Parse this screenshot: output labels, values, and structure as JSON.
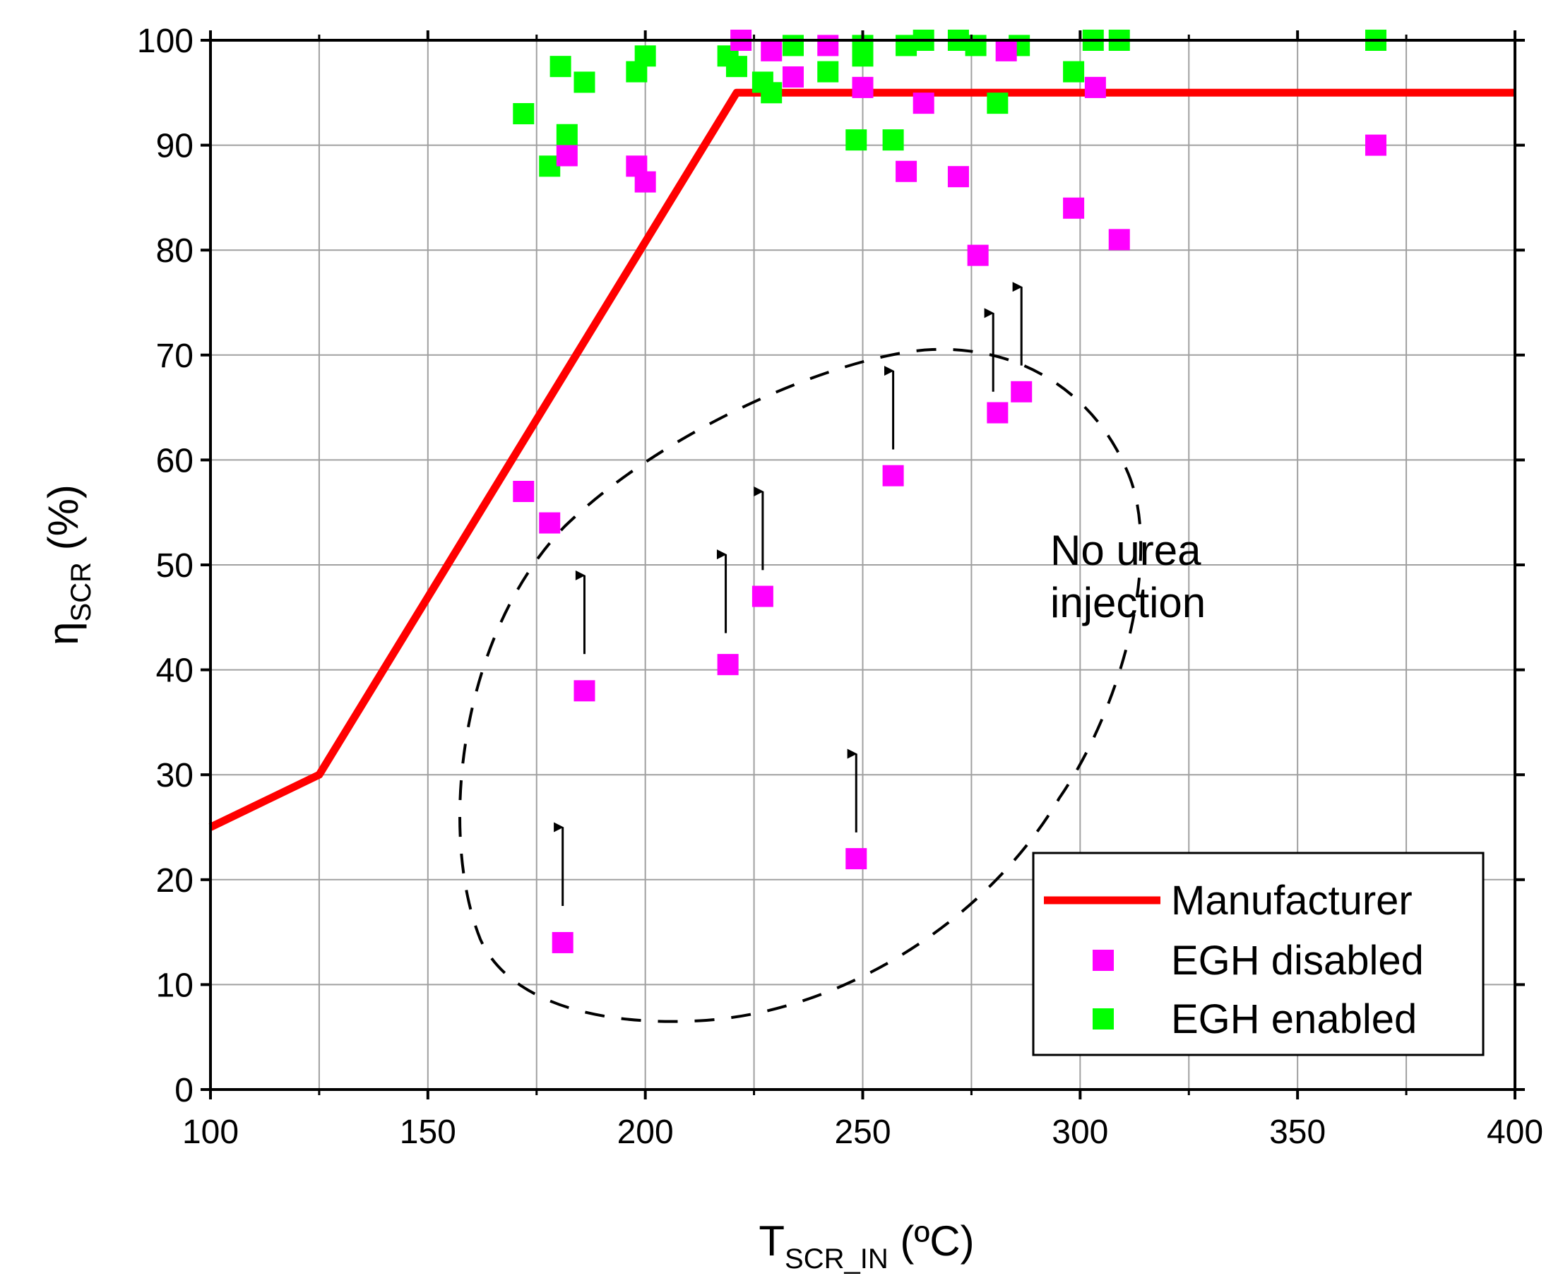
{
  "chart_data": {
    "type": "scatter",
    "xlabel": {
      "main": "T",
      "sub": "SCR_IN",
      "unit": " (ºC)"
    },
    "ylabel": {
      "main": "η",
      "sub": "SCR",
      "unit": " (%)"
    },
    "xlim": [
      100,
      400
    ],
    "ylim": [
      0,
      100
    ],
    "xticks": [
      100,
      150,
      200,
      250,
      300,
      350,
      400
    ],
    "yticks": [
      0,
      10,
      20,
      30,
      40,
      50,
      60,
      70,
      80,
      90,
      100
    ],
    "grid": true,
    "legend_position": "bottom-right",
    "series": [
      {
        "name": "Manufacturer",
        "kind": "line",
        "color": "#ff0000",
        "points": [
          [
            100,
            25
          ],
          [
            125,
            30
          ],
          [
            221,
            95
          ],
          [
            400,
            95
          ]
        ]
      },
      {
        "name": "EGH disabled",
        "kind": "scatter",
        "color": "#ff00ff",
        "points": [
          [
            172,
            57
          ],
          [
            178,
            54
          ],
          [
            181,
            14
          ],
          [
            182,
            89
          ],
          [
            186,
            38
          ],
          [
            198,
            88
          ],
          [
            200,
            86.5
          ],
          [
            219,
            40.5
          ],
          [
            222,
            100
          ],
          [
            227,
            47
          ],
          [
            229,
            99
          ],
          [
            234,
            96.5
          ],
          [
            242,
            99.5
          ],
          [
            248.5,
            22
          ],
          [
            250,
            95.5
          ],
          [
            257,
            58.5
          ],
          [
            260,
            87.5
          ],
          [
            264,
            94
          ],
          [
            272,
            87
          ],
          [
            276.5,
            79.5
          ],
          [
            281,
            64.5
          ],
          [
            283,
            99
          ],
          [
            286.5,
            66.5
          ],
          [
            298.5,
            84
          ],
          [
            303.5,
            95.5
          ],
          [
            309,
            81
          ],
          [
            368,
            90
          ]
        ]
      },
      {
        "name": "EGH enabled",
        "kind": "scatter",
        "color": "#00ff00",
        "points": [
          [
            172,
            93
          ],
          [
            178,
            88
          ],
          [
            180.5,
            97.5
          ],
          [
            182,
            91
          ],
          [
            186,
            96
          ],
          [
            198,
            97
          ],
          [
            200,
            98.5
          ],
          [
            219,
            98.5
          ],
          [
            221,
            97.5
          ],
          [
            227,
            96
          ],
          [
            229,
            95
          ],
          [
            234,
            99.5
          ],
          [
            242,
            97
          ],
          [
            248.5,
            90.5
          ],
          [
            250,
            99.5
          ],
          [
            250,
            98.5
          ],
          [
            257,
            90.5
          ],
          [
            260,
            99.5
          ],
          [
            264,
            100
          ],
          [
            272,
            100
          ],
          [
            276,
            99.5
          ],
          [
            281,
            94
          ],
          [
            286,
            99.5
          ],
          [
            298.5,
            97
          ],
          [
            303,
            100
          ],
          [
            309,
            100
          ],
          [
            368,
            100
          ]
        ]
      }
    ],
    "annotations": [
      {
        "text_lines": [
          "No urea",
          "injection"
        ]
      }
    ],
    "arrows": [
      {
        "x": 181,
        "from": 17.5,
        "to": 25
      },
      {
        "x": 186,
        "from": 41.5,
        "to": 49
      },
      {
        "x": 218.5,
        "from": 43.5,
        "to": 51
      },
      {
        "x": 227,
        "from": 49.5,
        "to": 57
      },
      {
        "x": 248.5,
        "from": 24.5,
        "to": 32
      },
      {
        "x": 257,
        "from": 61,
        "to": 68.5
      },
      {
        "x": 280,
        "from": 66.5,
        "to": 74
      },
      {
        "x": 286.5,
        "from": 69,
        "to": 76.5
      }
    ]
  }
}
